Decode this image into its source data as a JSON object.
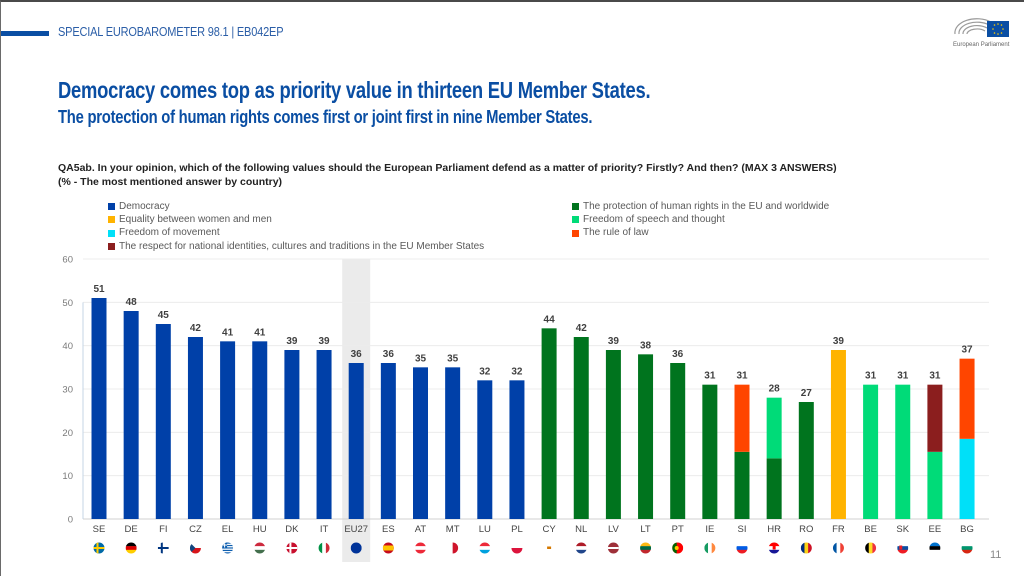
{
  "header": {
    "survey_label": "SPECIAL EUROBAROMETER 98.1 | EB042EP",
    "logo_caption": "European Parliament",
    "accent_color": "#0a4ea3"
  },
  "headline": "Democracy comes top as priority value in thirteen EU Member States.",
  "subheadline": "The protection of human rights comes first or joint first in nine Member States.",
  "question": {
    "line1": "QA5ab. In your opinion, which of the following values should the European Parliament defend as a matter of priority? Firstly? And then? (MAX 3 ANSWERS)",
    "line2": "(% - The most mentioned answer by country)"
  },
  "page_number": "11",
  "chart_data": {
    "type": "bar",
    "stacked_for_ties": true,
    "title": "",
    "xlabel": "",
    "ylabel": "",
    "ylim": [
      0,
      60
    ],
    "yticks": [
      0,
      10,
      20,
      30,
      40,
      50,
      60
    ],
    "grid": true,
    "legend_position": "top",
    "highlighted_category": "EU27",
    "legend": [
      {
        "key": "democracy",
        "label": "Democracy",
        "color": "#0040a8"
      },
      {
        "key": "equality",
        "label": "Equality between women and men",
        "color": "#ffb300"
      },
      {
        "key": "movement",
        "label": "Freedom of movement",
        "color": "#00e0f8"
      },
      {
        "key": "identities",
        "label": "The respect for national identities, cultures and traditions in the EU Member States",
        "color": "#8b1e1e"
      },
      {
        "key": "human_rights",
        "label": "The protection of human rights in the EU and worldwide",
        "color": "#00741e"
      },
      {
        "key": "speech",
        "label": "Freedom of speech and thought",
        "color": "#00db78"
      },
      {
        "key": "rule_of_law",
        "label": "The rule of law",
        "color": "#ff4500"
      }
    ],
    "categories": [
      "SE",
      "DE",
      "FI",
      "CZ",
      "EL",
      "HU",
      "DK",
      "IT",
      "EU27",
      "ES",
      "AT",
      "MT",
      "LU",
      "PL",
      "CY",
      "NL",
      "LV",
      "LT",
      "PT",
      "IE",
      "SI",
      "HR",
      "RO",
      "FR",
      "BE",
      "SK",
      "EE",
      "BG"
    ],
    "bars": [
      {
        "country": "SE",
        "value": 51,
        "segments": [
          "democracy"
        ],
        "flag": "se"
      },
      {
        "country": "DE",
        "value": 48,
        "segments": [
          "democracy"
        ],
        "flag": "de"
      },
      {
        "country": "FI",
        "value": 45,
        "segments": [
          "democracy"
        ],
        "flag": "fi"
      },
      {
        "country": "CZ",
        "value": 42,
        "segments": [
          "democracy"
        ],
        "flag": "cz"
      },
      {
        "country": "EL",
        "value": 41,
        "segments": [
          "democracy"
        ],
        "flag": "el"
      },
      {
        "country": "HU",
        "value": 41,
        "segments": [
          "democracy"
        ],
        "flag": "hu"
      },
      {
        "country": "DK",
        "value": 39,
        "segments": [
          "democracy"
        ],
        "flag": "dk"
      },
      {
        "country": "IT",
        "value": 39,
        "segments": [
          "democracy"
        ],
        "flag": "it"
      },
      {
        "country": "EU27",
        "value": 36,
        "segments": [
          "democracy"
        ],
        "flag": "eu"
      },
      {
        "country": "ES",
        "value": 36,
        "segments": [
          "democracy"
        ],
        "flag": "es"
      },
      {
        "country": "AT",
        "value": 35,
        "segments": [
          "democracy"
        ],
        "flag": "at"
      },
      {
        "country": "MT",
        "value": 35,
        "segments": [
          "democracy"
        ],
        "flag": "mt"
      },
      {
        "country": "LU",
        "value": 32,
        "segments": [
          "democracy"
        ],
        "flag": "lu"
      },
      {
        "country": "PL",
        "value": 32,
        "segments": [
          "democracy"
        ],
        "flag": "pl"
      },
      {
        "country": "CY",
        "value": 44,
        "segments": [
          "human_rights"
        ],
        "flag": "cy"
      },
      {
        "country": "NL",
        "value": 42,
        "segments": [
          "human_rights"
        ],
        "flag": "nl"
      },
      {
        "country": "LV",
        "value": 39,
        "segments": [
          "human_rights"
        ],
        "flag": "lv"
      },
      {
        "country": "LT",
        "value": 38,
        "segments": [
          "human_rights"
        ],
        "flag": "lt"
      },
      {
        "country": "PT",
        "value": 36,
        "segments": [
          "human_rights"
        ],
        "flag": "pt"
      },
      {
        "country": "IE",
        "value": 31,
        "segments": [
          "human_rights"
        ],
        "flag": "ie"
      },
      {
        "country": "SI",
        "value": 31,
        "segments": [
          "human_rights",
          "rule_of_law"
        ],
        "flag": "si"
      },
      {
        "country": "HR",
        "value": 28,
        "segments": [
          "human_rights",
          "speech"
        ],
        "flag": "hr"
      },
      {
        "country": "RO",
        "value": 27,
        "segments": [
          "human_rights"
        ],
        "flag": "ro"
      },
      {
        "country": "FR",
        "value": 39,
        "segments": [
          "equality"
        ],
        "flag": "fr"
      },
      {
        "country": "BE",
        "value": 31,
        "segments": [
          "speech"
        ],
        "flag": "be"
      },
      {
        "country": "SK",
        "value": 31,
        "segments": [
          "speech"
        ],
        "flag": "sk"
      },
      {
        "country": "EE",
        "value": 31,
        "segments": [
          "speech",
          "identities"
        ],
        "flag": "ee"
      },
      {
        "country": "BG",
        "value": 37,
        "segments": [
          "movement",
          "rule_of_law"
        ],
        "flag": "bg"
      }
    ]
  }
}
